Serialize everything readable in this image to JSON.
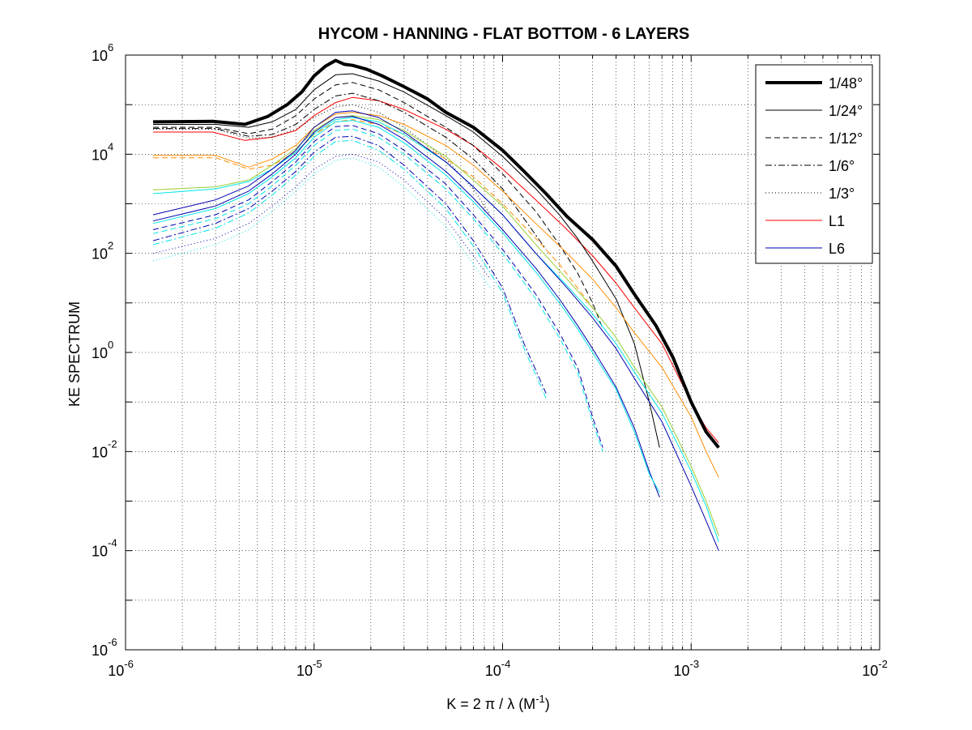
{
  "chart_data": {
    "type": "line",
    "title": "HYCOM - HANNING - FLAT BOTTOM - 6 LAYERS",
    "xlabel": {
      "main": "K = 2 π / λ  (M",
      "sup": "-1",
      "end": ")"
    },
    "ylabel": "KE SPECTRUM",
    "xscale": "log",
    "yscale": "log",
    "xlim": [
      1e-06,
      0.01
    ],
    "ylim": [
      1e-06,
      1000000.0
    ],
    "grid": true,
    "legend_position": "top-right",
    "x_ticks": [
      {
        "base": "10",
        "exp": "-6"
      },
      {
        "base": "10",
        "exp": "-5"
      },
      {
        "base": "10",
        "exp": "-4"
      },
      {
        "base": "10",
        "exp": "-3"
      },
      {
        "base": "10",
        "exp": "-2"
      }
    ],
    "y_ticks": [
      {
        "base": "10",
        "exp": "-6"
      },
      {
        "base": "10",
        "exp": "-4"
      },
      {
        "base": "10",
        "exp": "-2"
      },
      {
        "base": "10",
        "exp": "0"
      },
      {
        "base": "10",
        "exp": "2"
      },
      {
        "base": "10",
        "exp": "4"
      },
      {
        "base": "10",
        "exp": "6"
      }
    ],
    "legend": [
      {
        "label": "1/48°",
        "color": "#000000",
        "width": 4,
        "dash": ""
      },
      {
        "label": "1/24°",
        "color": "#000000",
        "width": 1,
        "dash": ""
      },
      {
        "label": "1/12°",
        "color": "#000000",
        "width": 1,
        "dash": "7,4"
      },
      {
        "label": "1/6°",
        "color": "#000000",
        "width": 1,
        "dash": "8,3,2,3"
      },
      {
        "label": "1/3°",
        "color": "#000000",
        "width": 1,
        "dash": "1,3"
      },
      {
        "label": "L1",
        "color": "#ff0000",
        "width": 1,
        "dash": ""
      },
      {
        "label": "L6",
        "color": "#0000b0",
        "width": 1,
        "dash": ""
      }
    ],
    "series": [
      {
        "name": "1/48°",
        "color": "#000000",
        "width": 4,
        "dash": "",
        "x": [
          1.4e-06,
          2.9e-06,
          4.3e-06,
          5.7e-06,
          7.2e-06,
          8.6e-06,
          1e-05,
          1.15e-05,
          1.3e-05,
          1.45e-05,
          1.6e-05,
          1.9e-05,
          2.3e-05,
          3e-05,
          4e-05,
          5e-05,
          7e-05,
          0.0001,
          0.00013,
          0.00017,
          0.00022,
          0.0003,
          0.0004,
          0.0005,
          0.00065,
          0.0008,
          0.001,
          0.0012,
          0.0014
        ],
        "y": [
          45000.0,
          46000.0,
          40000.0,
          58000.0,
          100000.0,
          180000.0,
          380000.0,
          600000.0,
          780000.0,
          650000.0,
          620000.0,
          520000.0,
          380000.0,
          230000.0,
          130000.0,
          70000.0,
          35000.0,
          12000.0,
          4500.0,
          1600.0,
          550,
          190,
          55,
          15,
          3.5,
          0.8,
          0.1,
          0.025,
          0.012
        ]
      },
      {
        "name": "1/48° L1",
        "color": "#ff0000",
        "width": 1,
        "dash": "",
        "x": [
          1.4e-06,
          2.9e-06,
          4.3e-06,
          6e-06,
          8e-06,
          1e-05,
          1.3e-05,
          1.6e-05,
          2.2e-05,
          3e-05,
          5e-05,
          7e-05,
          0.0001,
          0.00015,
          0.00022,
          0.0003,
          0.0004,
          0.0005,
          0.0007,
          0.001,
          0.0012,
          0.0014
        ],
        "y": [
          28000.0,
          28000.0,
          19000.0,
          22000.0,
          30000.0,
          60000.0,
          110000.0,
          140000.0,
          120000.0,
          80000.0,
          32000.0,
          15000.0,
          5000.0,
          1200.0,
          300,
          90,
          25,
          8,
          1.5,
          0.1,
          0.03,
          0.015
        ]
      },
      {
        "name": "1/24° L1",
        "color": "#000000",
        "width": 1,
        "dash": "",
        "x": [
          1.4e-06,
          3e-06,
          4.5e-06,
          6e-06,
          8e-06,
          1e-05,
          1.3e-05,
          1.6e-05,
          2.2e-05,
          3e-05,
          5e-05,
          7e-05,
          0.0001,
          0.00015,
          0.0002,
          0.00025,
          0.0003,
          0.0004,
          0.0005,
          0.0006,
          0.00068
        ],
        "y": [
          40000.0,
          40000.0,
          35000.0,
          45000.0,
          80000.0,
          200000.0,
          400000.0,
          420000.0,
          300000.0,
          180000.0,
          60000.0,
          28000.0,
          9000.0,
          2000.0,
          600,
          200,
          70,
          12,
          1.5,
          0.1,
          0.012
        ]
      },
      {
        "name": "1/12° L1",
        "color": "#000000",
        "width": 1,
        "dash": "7,4",
        "x": [
          1.4e-06,
          3e-06,
          4.5e-06,
          6e-06,
          8e-06,
          1e-05,
          1.3e-05,
          1.6e-05,
          2.2e-05,
          3e-05,
          5e-05,
          7e-05,
          0.0001,
          0.00015,
          0.0002,
          0.00025,
          0.0003,
          0.00034
        ],
        "y": [
          35000.0,
          35000.0,
          26000.0,
          32000.0,
          60000.0,
          130000.0,
          250000.0,
          280000.0,
          200000.0,
          110000.0,
          35000.0,
          15000.0,
          4000.0,
          700,
          150,
          40,
          10,
          3
        ]
      },
      {
        "name": "1/6° L1",
        "color": "#000000",
        "width": 1,
        "dash": "8,3,2,3",
        "x": [
          1.4e-06,
          3e-06,
          4.5e-06,
          6e-06,
          8e-06,
          1e-05,
          1.3e-05,
          1.6e-05,
          2.2e-05,
          3e-05,
          5e-05,
          7e-05,
          0.0001,
          0.00013,
          0.00017
        ],
        "y": [
          33000.0,
          33000.0,
          23000.0,
          25000.0,
          40000.0,
          80000.0,
          150000.0,
          170000.0,
          120000.0,
          70000.0,
          22000.0,
          8000.0,
          2000.0,
          500,
          120
        ]
      },
      {
        "name": "1/3° L1",
        "color": "#000000",
        "width": 1,
        "dash": "1,3",
        "x": [
          1.4e-06,
          3e-06,
          4.5e-06,
          6e-06,
          8e-06,
          1e-05,
          1.3e-05,
          1.6e-05,
          2.2e-05,
          3e-05,
          5e-05,
          7e-05,
          8.6e-05
        ],
        "y": [
          32000.0,
          32000.0,
          21000.0,
          22000.0,
          32000.0,
          55000.0,
          90000.0,
          100000.0,
          70000.0,
          35000.0,
          8000.0,
          2000.0,
          600
        ]
      },
      {
        "name": "1/48° L2",
        "color": "#ff8c00",
        "width": 1,
        "dash": "",
        "x": [
          1.4e-06,
          3e-06,
          4.5e-06,
          6e-06,
          8e-06,
          1e-05,
          1.3e-05,
          1.6e-05,
          2.2e-05,
          3e-05,
          5e-05,
          7e-05,
          0.0001,
          0.00015,
          0.00022,
          0.0003,
          0.0004,
          0.0005,
          0.0007,
          0.001,
          0.0012,
          0.0014
        ],
        "y": [
          9500.0,
          9500.0,
          5500.0,
          8000.0,
          15000.0,
          35000.0,
          65000.0,
          70000.0,
          60000.0,
          40000.0,
          15000.0,
          6000.0,
          1800.0,
          400,
          100,
          30,
          8,
          2.5,
          0.5,
          0.05,
          0.01,
          0.003
        ]
      },
      {
        "name": "1/12° L2",
        "color": "#ff8c00",
        "width": 1,
        "dash": "7,4",
        "x": [
          1.4e-06,
          3e-06,
          4.5e-06,
          6e-06,
          8e-06,
          1e-05,
          1.3e-05,
          1.6e-05,
          2.2e-05,
          3e-05,
          5e-05,
          7e-05,
          0.0001,
          0.00015,
          0.0002,
          0.00025,
          0.0003
        ],
        "y": [
          8500.0,
          8500.0,
          5000.0,
          6000.0,
          11000.0,
          25000.0,
          45000.0,
          50000.0,
          40000.0,
          25000.0,
          8000.0,
          3500.0,
          1000.0,
          200,
          60,
          20,
          8
        ]
      },
      {
        "name": "1/48° L3",
        "color": "#9acd32",
        "width": 1,
        "dash": "",
        "x": [
          1.4e-06,
          3e-06,
          4.5e-06,
          6e-06,
          8e-06,
          1e-05,
          1.3e-05,
          1.6e-05,
          2.2e-05,
          3e-05,
          5e-05,
          7e-05,
          0.0001,
          0.00015,
          0.00022,
          0.0003,
          0.0004,
          0.0005,
          0.0007,
          0.001,
          0.0012,
          0.0014
        ],
        "y": [
          1900.0,
          2200.0,
          3000.0,
          6000.0,
          13000.0,
          30000.0,
          55000.0,
          60000.0,
          50000.0,
          30000.0,
          9000.0,
          3000.0,
          900,
          150,
          30,
          8,
          2,
          0.5,
          0.08,
          0.005,
          0.001,
          0.0002
        ]
      },
      {
        "name": "1/48° L4",
        "color": "#00e5e5",
        "width": 1,
        "dash": "",
        "x": [
          1.4e-06,
          3e-06,
          4.5e-06,
          6e-06,
          8e-06,
          1e-05,
          1.3e-05,
          1.6e-05,
          2.2e-05,
          3e-05,
          5e-05,
          7e-05,
          0.0001,
          0.00015,
          0.00022,
          0.0003,
          0.0004,
          0.0005,
          0.0007,
          0.001,
          0.0012,
          0.0014
        ],
        "y": [
          1600.0,
          2000.0,
          2800.0,
          5000.0,
          11000.0,
          26000.0,
          50000.0,
          55000.0,
          45000.0,
          25000.0,
          7000.0,
          2200.0,
          600,
          100,
          22,
          6,
          1.5,
          0.4,
          0.06,
          0.004,
          0.0008,
          0.00015
        ]
      },
      {
        "name": "1/48° L6",
        "color": "#0000b0",
        "width": 1,
        "dash": "",
        "x": [
          1.4e-06,
          3e-06,
          4.5e-06,
          6e-06,
          8e-06,
          1e-05,
          1.3e-05,
          1.6e-05,
          2.2e-05,
          3e-05,
          5e-05,
          7e-05,
          0.0001,
          0.00015,
          0.00022,
          0.0003,
          0.0004,
          0.0005,
          0.0007,
          0.001,
          0.0012,
          0.0014
        ],
        "y": [
          600,
          1200.0,
          2300.0,
          5000.0,
          12000.0,
          35000.0,
          70000.0,
          75000.0,
          55000.0,
          28000.0,
          7000.0,
          2200.0,
          600,
          100,
          20,
          5,
          1.2,
          0.3,
          0.04,
          0.002,
          0.0004,
          0.0001
        ]
      },
      {
        "name": "1/24° L6",
        "color": "#0000b0",
        "width": 1,
        "dash": "",
        "x": [
          1.4e-06,
          3e-06,
          4.5e-06,
          6e-06,
          8e-06,
          1e-05,
          1.3e-05,
          1.6e-05,
          2.2e-05,
          3e-05,
          5e-05,
          7e-05,
          0.0001,
          0.00015,
          0.0002,
          0.00025,
          0.0003,
          0.0004,
          0.0005,
          0.0006,
          0.00068
        ],
        "y": [
          450,
          900,
          1800.0,
          4000.0,
          10000.0,
          28000.0,
          55000.0,
          58000.0,
          40000.0,
          20000.0,
          4500.0,
          1300.0,
          300,
          50,
          12,
          3.5,
          1.2,
          0.2,
          0.03,
          0.004,
          0.0012
        ]
      },
      {
        "name": "1/24° L4",
        "color": "#00e5e5",
        "width": 1,
        "dash": "",
        "x": [
          1.4e-06,
          3e-06,
          4.5e-06,
          6e-06,
          8e-06,
          1e-05,
          1.3e-05,
          1.6e-05,
          2.2e-05,
          3e-05,
          5e-05,
          7e-05,
          0.0001,
          0.00015,
          0.0002,
          0.00025,
          0.0003,
          0.0004,
          0.0005,
          0.0006,
          0.00068
        ],
        "y": [
          400,
          800,
          1600.0,
          3500.0,
          8500.0,
          22000.0,
          45000.0,
          48000.0,
          35000.0,
          17000.0,
          3800.0,
          1100.0,
          260,
          42,
          10,
          3,
          1,
          0.18,
          0.025,
          0.0035,
          0.0015
        ]
      },
      {
        "name": "1/12° L6",
        "color": "#0000b0",
        "width": 1,
        "dash": "7,4",
        "x": [
          1.4e-06,
          3e-06,
          4.5e-06,
          6e-06,
          8e-06,
          1e-05,
          1.3e-05,
          1.6e-05,
          2.2e-05,
          3e-05,
          5e-05,
          7e-05,
          0.0001,
          0.00015,
          0.0002,
          0.00025,
          0.0003,
          0.00034
        ],
        "y": [
          300,
          600,
          1200.0,
          2800.0,
          7000.0,
          18000.0,
          36000.0,
          38000.0,
          26000.0,
          12000.0,
          2500.0,
          600,
          120,
          15,
          2.5,
          0.5,
          0.05,
          0.012
        ]
      },
      {
        "name": "1/12° L4",
        "color": "#00e5e5",
        "width": 1,
        "dash": "7,4",
        "x": [
          1.4e-06,
          3e-06,
          4.5e-06,
          6e-06,
          8e-06,
          1e-05,
          1.3e-05,
          1.6e-05,
          2.2e-05,
          3e-05,
          5e-05,
          7e-05,
          0.0001,
          0.00015,
          0.0002,
          0.00025,
          0.0003,
          0.00034
        ],
        "y": [
          250,
          500,
          1000.0,
          2300.0,
          6000.0,
          15000.0,
          30000.0,
          32000.0,
          22000.0,
          10000.0,
          2000.0,
          500,
          100,
          12,
          2,
          0.4,
          0.04,
          0.01
        ]
      },
      {
        "name": "1/6° L6",
        "color": "#0000b0",
        "width": 1,
        "dash": "8,3,2,3",
        "x": [
          1.4e-06,
          3e-06,
          4.5e-06,
          6e-06,
          8e-06,
          1e-05,
          1.3e-05,
          1.6e-05,
          2.2e-05,
          3e-05,
          5e-05,
          7e-05,
          0.0001,
          0.00013,
          0.00017
        ],
        "y": [
          180,
          400,
          800,
          1800.0,
          4500.0,
          11000.0,
          22000.0,
          23000.0,
          15000.0,
          6000.0,
          1000.0,
          180,
          20,
          1.5,
          0.15
        ]
      },
      {
        "name": "1/6° L4",
        "color": "#00e5e5",
        "width": 1,
        "dash": "8,3,2,3",
        "x": [
          1.4e-06,
          3e-06,
          4.5e-06,
          6e-06,
          8e-06,
          1e-05,
          1.3e-05,
          1.6e-05,
          2.2e-05,
          3e-05,
          5e-05,
          7e-05,
          0.0001,
          0.00013,
          0.00017
        ],
        "y": [
          150,
          320,
          650,
          1500.0,
          3800.0,
          9000.0,
          18000.0,
          19000.0,
          12000.0,
          5000.0,
          800,
          140,
          16,
          1.2,
          0.12
        ]
      },
      {
        "name": "1/3° L6",
        "color": "#0000b0",
        "width": 1,
        "dash": "1,3",
        "x": [
          1.4e-06,
          3e-06,
          4.5e-06,
          6e-06,
          8e-06,
          1e-05,
          1.3e-05,
          1.6e-05,
          2.2e-05,
          3e-05,
          5e-05,
          7e-05,
          8.6e-05
        ],
        "y": [
          100,
          200,
          400,
          900,
          2200.0,
          5000.0,
          9000.0,
          10000.0,
          7000.0,
          3000.0,
          500,
          90,
          30
        ]
      },
      {
        "name": "1/3° L4",
        "color": "#00e5e5",
        "width": 1,
        "dash": "1,3",
        "x": [
          1.4e-06,
          3e-06,
          4.5e-06,
          6e-06,
          8e-06,
          1e-05,
          1.3e-05,
          1.6e-05,
          2.2e-05,
          3e-05,
          5e-05,
          7e-05,
          8.6e-05
        ],
        "y": [
          70,
          150,
          300,
          700,
          1800.0,
          4000.0,
          7500.0,
          8500.0,
          5500.0,
          2200.0,
          350,
          60,
          20
        ]
      }
    ]
  }
}
